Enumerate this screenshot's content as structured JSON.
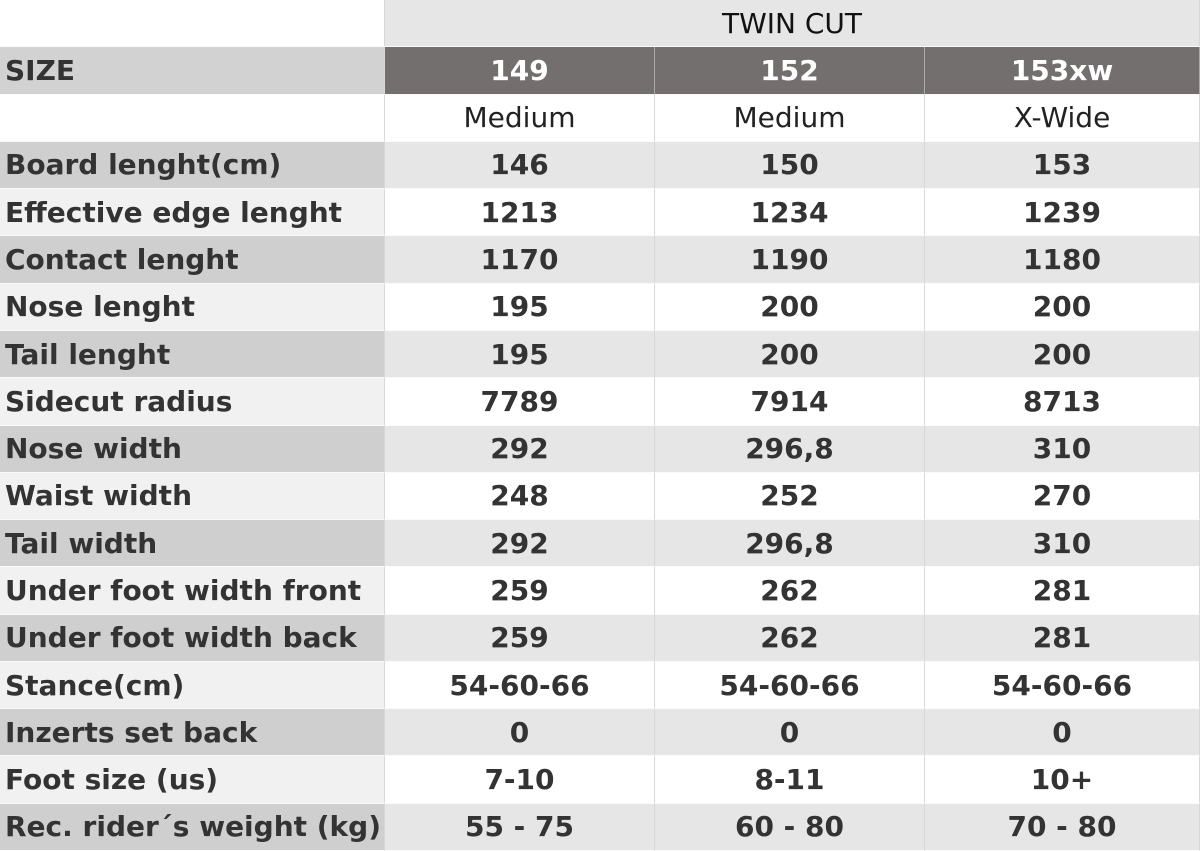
{
  "header": {
    "title": "TWIN CUT",
    "size_label": "SIZE",
    "sizes": [
      "149",
      "152",
      "153xw"
    ],
    "widths": [
      "Medium",
      "Medium",
      "X-Wide"
    ]
  },
  "table": {
    "rows": [
      [
        "Board lenght(cm)",
        "146",
        "150",
        "153"
      ],
      [
        "Effective edge lenght",
        "1213",
        "1234",
        "1239"
      ],
      [
        "Contact lenght",
        "1170",
        "1190",
        "1180"
      ],
      [
        "Nose lenght",
        "195",
        "200",
        "200"
      ],
      [
        "Tail lenght",
        "195",
        "200",
        "200"
      ],
      [
        "Sidecut radius",
        "7789",
        "7914",
        "8713"
      ],
      [
        "Nose width",
        "292",
        "296,8",
        "310"
      ],
      [
        "Waist width",
        "248",
        "252",
        "270"
      ],
      [
        "Tail width",
        "292",
        "296,8",
        "310"
      ],
      [
        "Under foot width front",
        "259",
        "262",
        "281"
      ],
      [
        "Under foot width back",
        "259",
        "262",
        "281"
      ],
      [
        "Stance(cm)",
        "54-60-66",
        "54-60-66",
        "54-60-66"
      ],
      [
        "Inzerts set back",
        "0",
        "0",
        "0"
      ],
      [
        "Foot size (us)",
        "7-10",
        "8-11",
        "10+"
      ],
      [
        "Rec. rider´s weight (kg)",
        "55 - 75",
        "60 - 80",
        "70 - 80"
      ]
    ]
  }
}
